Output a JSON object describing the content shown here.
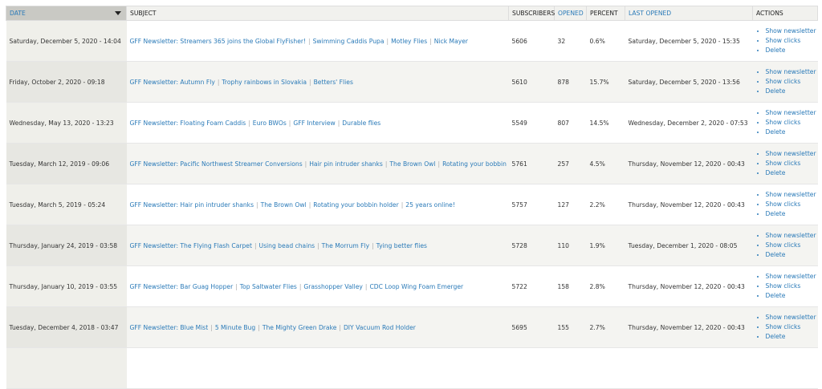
{
  "header": [
    "DATE",
    "SUBJECT",
    "SUBSCRIBERS",
    "OPENED",
    "PERCENT",
    "LAST OPENED",
    "ACTIONS"
  ],
  "separator": "|",
  "actions": [
    "Show newsletter",
    "Show clicks",
    "Delete"
  ],
  "rows": [
    {
      "date": "Saturday, December 5, 2020 - 14:04",
      "subject": [
        "GFF Newsletter: Streamers 365 joins the Global FlyFisher!",
        "Swimming Caddis Pupa",
        "Motley Flies",
        "Nick Mayer"
      ],
      "subscribers": 5606,
      "opened": 32,
      "percent": "0.6%",
      "last_opened": "Saturday, December 5, 2020 - 15:35"
    },
    {
      "date": "Friday, October 2, 2020 - 09:18",
      "subject": [
        "GFF Newsletter: Autumn Fly",
        "Trophy rainbows in Slovakia",
        "Betters' Flies"
      ],
      "subscribers": 5610,
      "opened": 878,
      "percent": "15.7%",
      "last_opened": "Saturday, December 5, 2020 - 13:56"
    },
    {
      "date": "Wednesday, May 13, 2020 - 13:23",
      "subject": [
        "GFF Newsletter: Floating Foam Caddis",
        "Euro BWOs",
        "GFF Interview",
        "Durable flies"
      ],
      "subscribers": 5549,
      "opened": 807,
      "percent": "14.5%",
      "last_opened": "Wednesday, December 2, 2020 - 07:53"
    },
    {
      "date": "Tuesday, March 12, 2019 - 09:06",
      "subject": [
        "GFF Newsletter: Pacific Northwest Streamer Conversions",
        "Hair pin intruder shanks",
        "The Brown Owl",
        "Rotating your bobbin holder"
      ],
      "subscribers": 5761,
      "opened": 257,
      "percent": "4.5%",
      "last_opened": "Thursday, November 12, 2020 - 00:43"
    },
    {
      "date": "Tuesday, March 5, 2019 - 05:24",
      "subject": [
        "GFF Newsletter: Hair pin intruder shanks",
        "The Brown Owl",
        "Rotating your bobbin holder",
        "25 years online!"
      ],
      "subscribers": 5757,
      "opened": 127,
      "percent": "2.2%",
      "last_opened": "Thursday, November 12, 2020 - 00:43"
    },
    {
      "date": "Thursday, January 24, 2019 - 03:58",
      "subject": [
        "GFF Newsletter: The Flying Flash Carpet",
        "Using bead chains",
        "The Morrum Fly",
        "Tying better flies"
      ],
      "subscribers": 5728,
      "opened": 110,
      "percent": "1.9%",
      "last_opened": "Tuesday, December 1, 2020 - 08:05"
    },
    {
      "date": "Thursday, January 10, 2019 - 03:55",
      "subject": [
        "GFF Newsletter: Bar Guag Hopper",
        "Top Saltwater Flies",
        "Grasshopper Valley",
        "CDC Loop Wing Foam Emerger"
      ],
      "subscribers": 5722,
      "opened": 158,
      "percent": "2.8%",
      "last_opened": "Thursday, November 12, 2020 - 00:43"
    },
    {
      "date": "Tuesday, December 4, 2018 - 03:47",
      "subject": [
        "GFF Newsletter: Blue Mist",
        "5 Minute Bug",
        "The Mighty Green Drake",
        "DIY Vacuum Rod Holder"
      ],
      "subscribers": 5695,
      "opened": 155,
      "percent": "2.7%",
      "last_opened": "Thursday, November 12, 2020 - 00:43"
    }
  ]
}
